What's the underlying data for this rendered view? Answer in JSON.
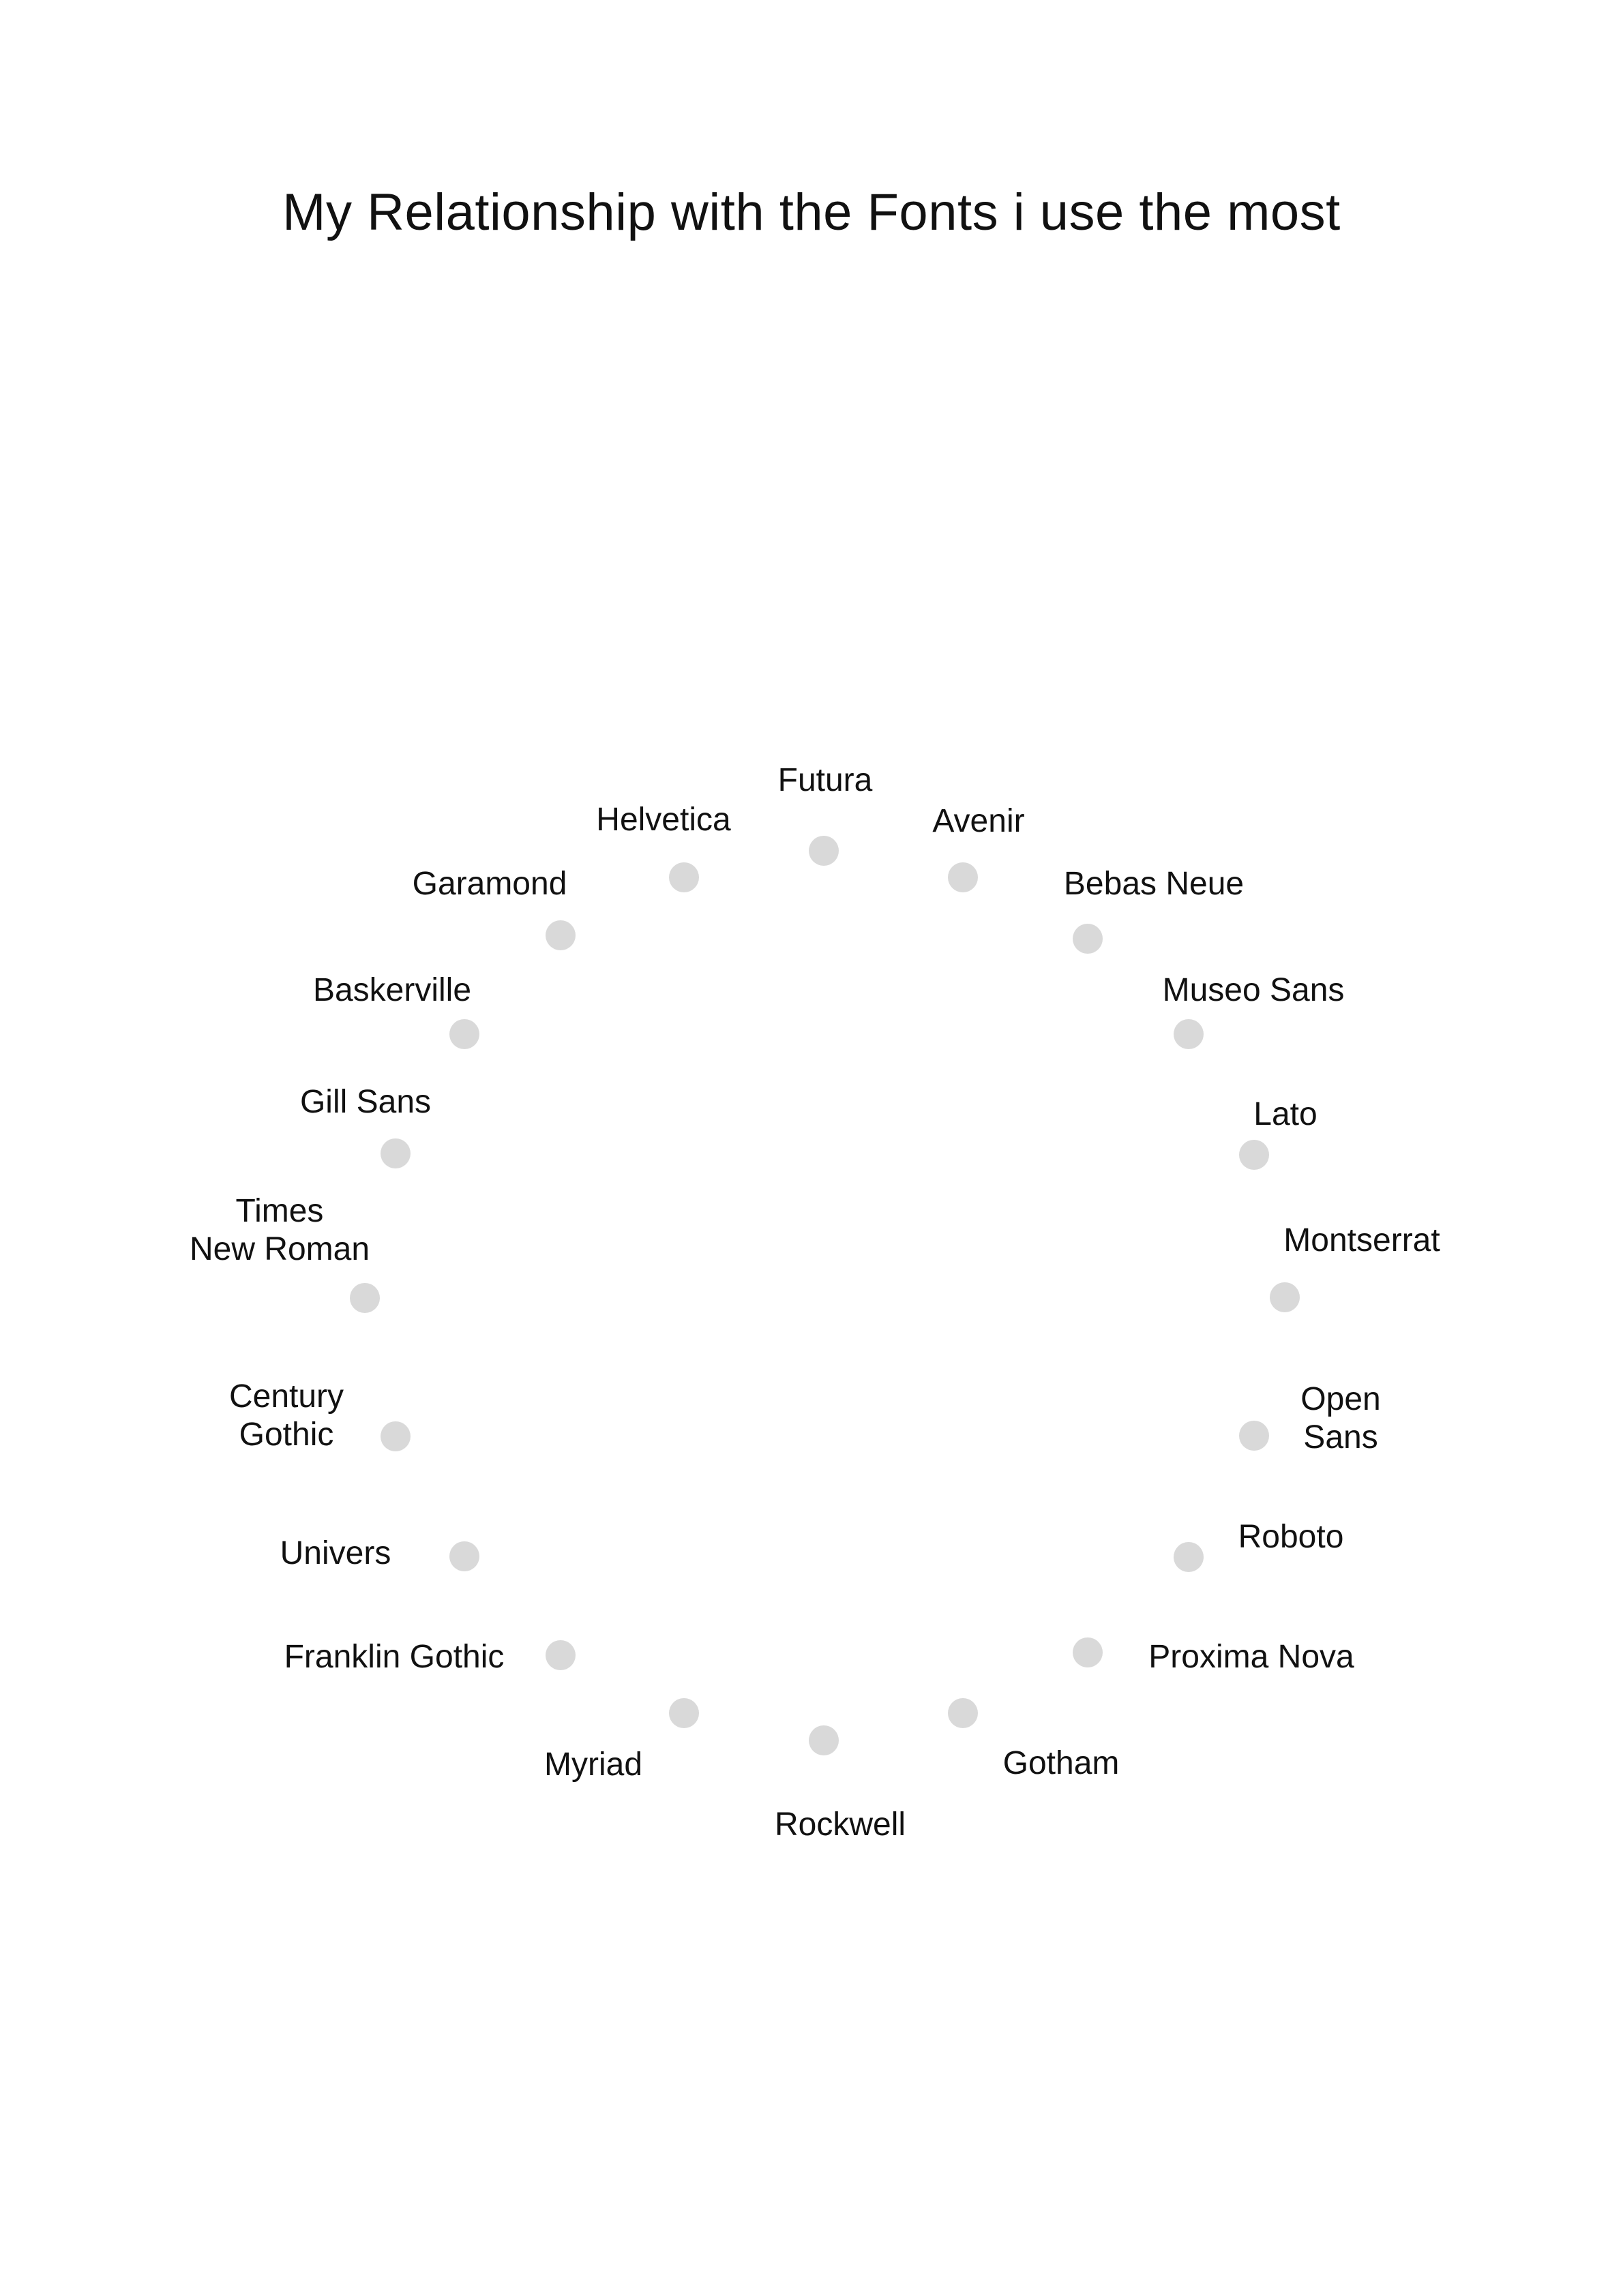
{
  "title": "My Relationship with the Fonts i use the most",
  "dot_color": "#d9d9d9",
  "fonts": [
    {
      "lines": [
        "Futura"
      ]
    },
    {
      "lines": [
        "Avenir"
      ]
    },
    {
      "lines": [
        "Bebas Neue"
      ]
    },
    {
      "lines": [
        "Museo Sans"
      ]
    },
    {
      "lines": [
        "Lato"
      ]
    },
    {
      "lines": [
        "Montserrat"
      ]
    },
    {
      "lines": [
        "Open",
        "Sans"
      ]
    },
    {
      "lines": [
        "Roboto"
      ]
    },
    {
      "lines": [
        "Proxima Nova"
      ]
    },
    {
      "lines": [
        "Gotham"
      ]
    },
    {
      "lines": [
        "Rockwell"
      ]
    },
    {
      "lines": [
        "Myriad"
      ]
    },
    {
      "lines": [
        "Franklin Gothic"
      ]
    },
    {
      "lines": [
        "Univers"
      ]
    },
    {
      "lines": [
        "Century",
        "Gothic"
      ]
    },
    {
      "lines": [
        "Times",
        "New Roman"
      ]
    },
    {
      "lines": [
        "Gill Sans"
      ]
    },
    {
      "lines": [
        "Baskerville"
      ]
    },
    {
      "lines": [
        "Garamond"
      ]
    },
    {
      "lines": [
        "Helvetica"
      ]
    }
  ]
}
